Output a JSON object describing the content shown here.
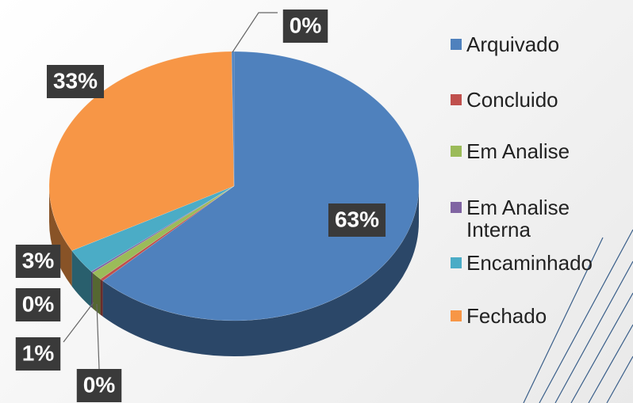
{
  "chart_data": {
    "type": "pie",
    "categories": [
      "Arquivado",
      "Concluido",
      "Em Analise",
      "Em Analise Interna",
      "Encaminhado",
      "Fechado",
      null
    ],
    "values": [
      63,
      0.3,
      1,
      0.2,
      3,
      33,
      0.2
    ],
    "value_labels": [
      "63%",
      "0%",
      "1%",
      "0%",
      "3%",
      "33%",
      "0%"
    ],
    "colors": [
      "#4f81bd",
      "#c0504d",
      "#9bbb59",
      "#8064a2",
      "#4bacc6",
      "#f79646",
      "#4f81bd"
    ],
    "legend": "right"
  }
}
